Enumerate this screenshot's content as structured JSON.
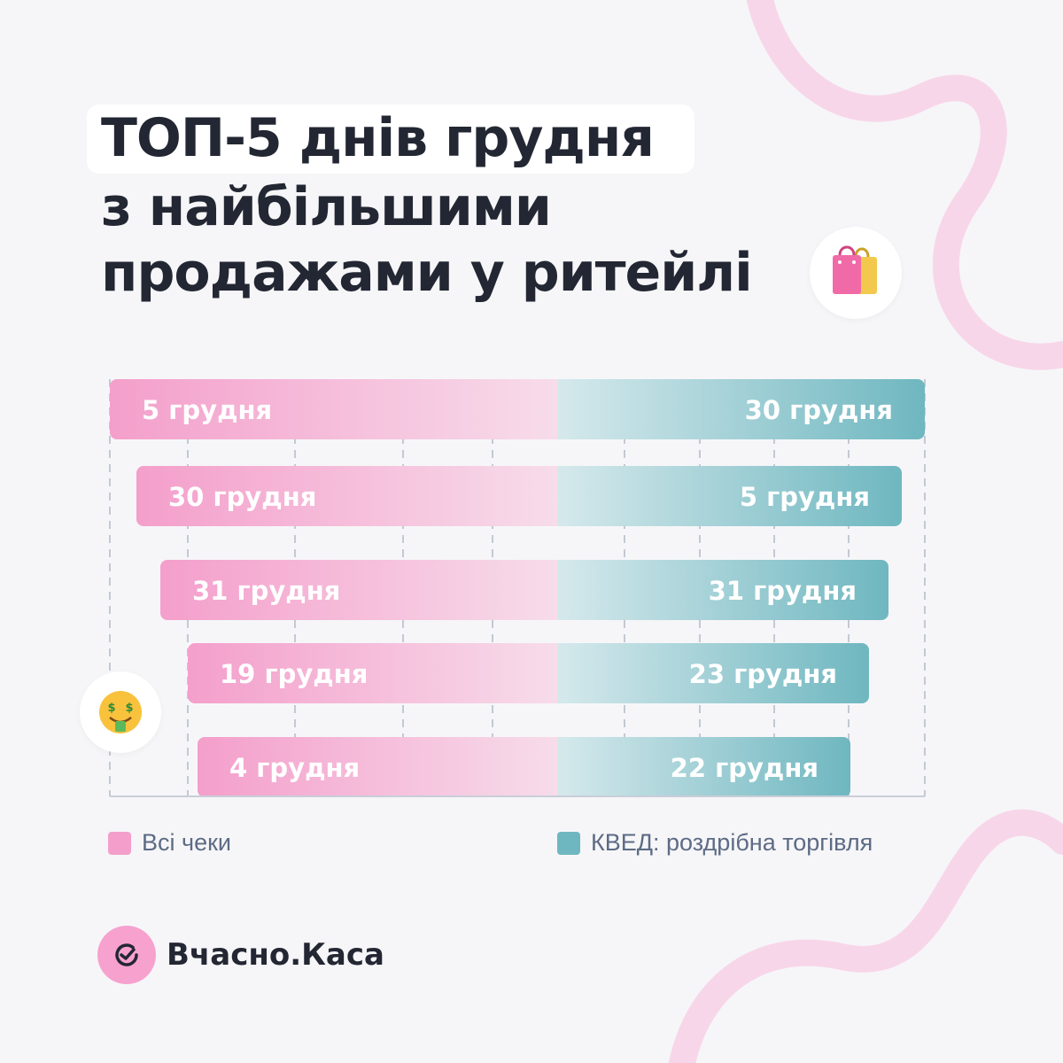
{
  "title": {
    "line1": "ТОП-5 днів грудня",
    "line2": "з найбільшими",
    "line3": "продажами у ритейлі"
  },
  "icons": {
    "title_badge": "shopping-bags-icon",
    "side_badge": "money-mouth-face-icon"
  },
  "colors": {
    "all_checks": "#f49fcb",
    "retail": "#6fb7c0",
    "title_text": "#232733",
    "legend_text": "#5d6b85",
    "decor": "#f8d6e9",
    "logo": "#f7a1cf"
  },
  "chart_data": {
    "type": "bar",
    "title": "",
    "xlabel": "",
    "ylabel": "",
    "ranks": [
      1,
      2,
      3,
      4,
      5
    ],
    "series": [
      {
        "name": "Всі чеки",
        "values": [
          "5 грудня",
          "30 грудня",
          "31 грудня",
          "19 грудня",
          "4 грудня"
        ]
      },
      {
        "name": "КВЕД: роздрібна торгівля",
        "values": [
          "30 грудня",
          "5 грудня",
          "31 грудня",
          "23 грудня",
          "22 грудня"
        ]
      }
    ],
    "legend_position": "bottom",
    "grid": true
  },
  "legend": {
    "all_checks": "Всі чеки",
    "retail": "КВЕД: роздрібна торгівля"
  },
  "brand": {
    "name": "Вчасно.Каса"
  }
}
